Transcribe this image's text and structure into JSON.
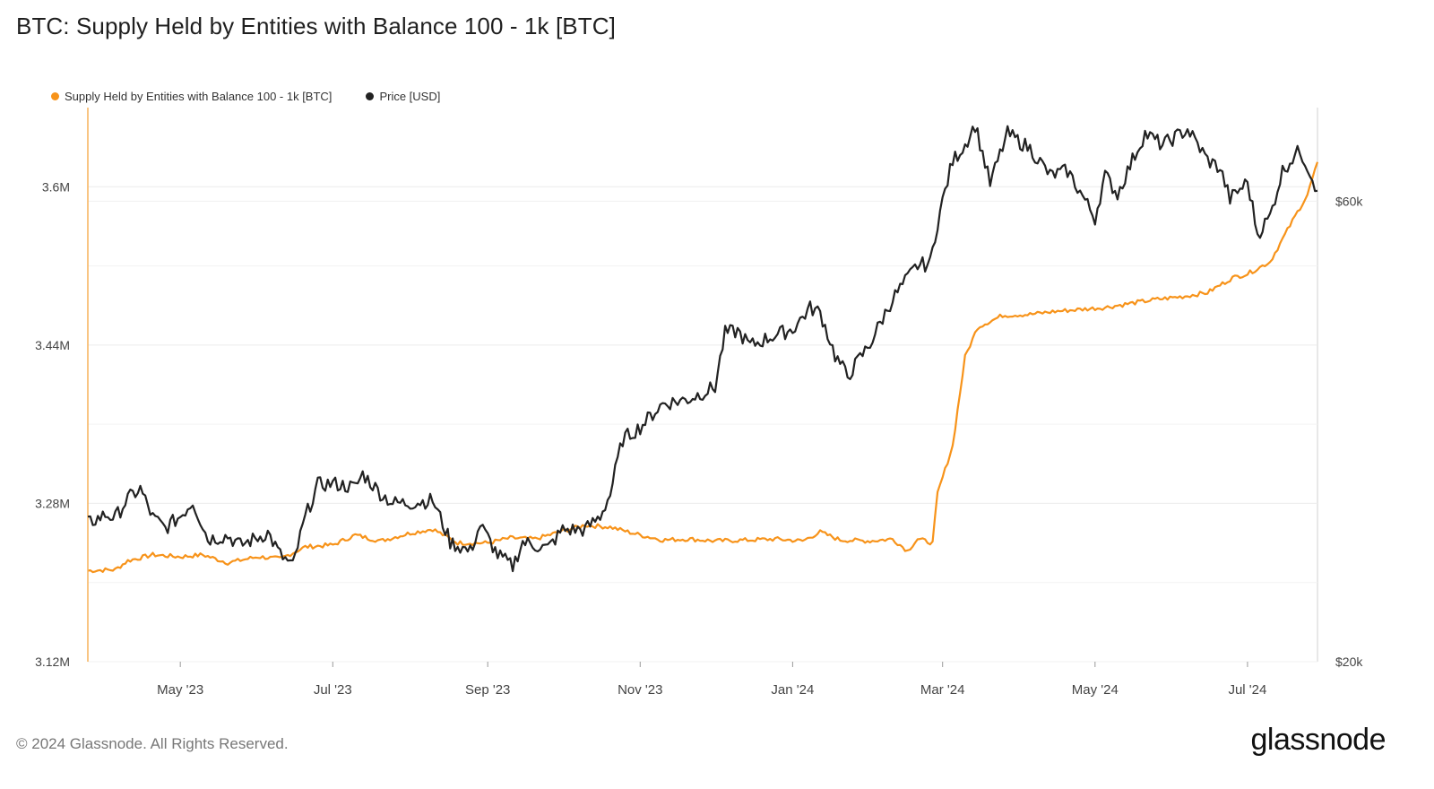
{
  "title": "BTC: Supply Held by Entities with Balance 100 - 1k [BTC]",
  "legend": [
    {
      "label": "Supply Held by Entities with Balance 100 - 1k [BTC]",
      "color": "#f7931a"
    },
    {
      "label": "Price [USD]",
      "color": "#222222"
    }
  ],
  "footer": "© 2024 Glassnode. All Rights Reserved.",
  "brand": "glassnode",
  "chart_data": {
    "type": "line",
    "x_range": [
      "2023-03-25",
      "2024-07-29"
    ],
    "x_ticks": [
      {
        "date": "2023-05-01",
        "label": "May '23"
      },
      {
        "date": "2023-07-01",
        "label": "Jul '23"
      },
      {
        "date": "2023-09-01",
        "label": "Sep '23"
      },
      {
        "date": "2023-11-01",
        "label": "Nov '23"
      },
      {
        "date": "2024-01-01",
        "label": "Jan '24"
      },
      {
        "date": "2024-03-01",
        "label": "Mar '24"
      },
      {
        "date": "2024-05-01",
        "label": "May '24"
      },
      {
        "date": "2024-07-01",
        "label": "Jul '24"
      }
    ],
    "y_left": {
      "range": [
        3120000,
        3680000
      ],
      "ticks": [
        {
          "v": 3120000,
          "label": "3.12M"
        },
        {
          "v": 3280000,
          "label": "3.28M"
        },
        {
          "v": 3440000,
          "label": "3.44M"
        },
        {
          "v": 3600000,
          "label": "3.6M"
        }
      ]
    },
    "y_right": {
      "scale": "log",
      "range": [
        20000,
        75000
      ],
      "ticks": [
        {
          "v": 20000,
          "label": "$20k"
        },
        {
          "v": 60000,
          "label": "$60k"
        }
      ]
    },
    "grid": true,
    "legend_position": "top-left",
    "series": [
      {
        "name": "Supply Held by Entities with Balance 100 - 1k [BTC]",
        "axis": "left",
        "color": "#f7931a",
        "points": [
          [
            "2023-03-25",
            3212000
          ],
          [
            "2023-04-05",
            3213000
          ],
          [
            "2023-04-10",
            3222000
          ],
          [
            "2023-04-20",
            3228000
          ],
          [
            "2023-05-01",
            3226000
          ],
          [
            "2023-05-10",
            3228000
          ],
          [
            "2023-05-20",
            3220000
          ],
          [
            "2023-06-01",
            3226000
          ],
          [
            "2023-06-10",
            3224000
          ],
          [
            "2023-06-20",
            3236000
          ],
          [
            "2023-07-01",
            3238000
          ],
          [
            "2023-07-10",
            3248000
          ],
          [
            "2023-07-20",
            3242000
          ],
          [
            "2023-08-01",
            3250000
          ],
          [
            "2023-08-10",
            3254000
          ],
          [
            "2023-08-20",
            3240000
          ],
          [
            "2023-09-01",
            3240000
          ],
          [
            "2023-09-10",
            3245000
          ],
          [
            "2023-09-20",
            3244000
          ],
          [
            "2023-10-01",
            3252000
          ],
          [
            "2023-10-10",
            3258000
          ],
          [
            "2023-10-20",
            3256000
          ],
          [
            "2023-11-01",
            3248000
          ],
          [
            "2023-11-10",
            3243000
          ],
          [
            "2023-11-20",
            3244000
          ],
          [
            "2023-12-01",
            3242000
          ],
          [
            "2023-12-15",
            3243000
          ],
          [
            "2023-12-25",
            3244000
          ],
          [
            "2024-01-05",
            3242000
          ],
          [
            "2024-01-12",
            3251000
          ],
          [
            "2024-01-20",
            3243000
          ],
          [
            "2024-02-01",
            3242000
          ],
          [
            "2024-02-10",
            3244000
          ],
          [
            "2024-02-16",
            3232000
          ],
          [
            "2024-02-20",
            3244000
          ],
          [
            "2024-02-26",
            3240000
          ],
          [
            "2024-02-28",
            3290000
          ],
          [
            "2024-03-05",
            3338000
          ],
          [
            "2024-03-10",
            3428000
          ],
          [
            "2024-03-15",
            3458000
          ],
          [
            "2024-03-25",
            3470000
          ],
          [
            "2024-04-05",
            3471000
          ],
          [
            "2024-04-15",
            3474000
          ],
          [
            "2024-04-25",
            3476000
          ],
          [
            "2024-05-05",
            3478000
          ],
          [
            "2024-05-15",
            3482000
          ],
          [
            "2024-05-25",
            3486000
          ],
          [
            "2024-06-05",
            3489000
          ],
          [
            "2024-06-15",
            3493000
          ],
          [
            "2024-06-25",
            3508000
          ],
          [
            "2024-07-01",
            3512000
          ],
          [
            "2024-07-10",
            3524000
          ],
          [
            "2024-07-20",
            3570000
          ],
          [
            "2024-07-25",
            3592000
          ],
          [
            "2024-07-29",
            3625000
          ]
        ]
      },
      {
        "name": "Price [USD]",
        "axis": "right",
        "color": "#222222",
        "points": [
          [
            "2023-03-25",
            27800
          ],
          [
            "2023-04-01",
            28400
          ],
          [
            "2023-04-05",
            28200
          ],
          [
            "2023-04-10",
            29500
          ],
          [
            "2023-04-15",
            30200
          ],
          [
            "2023-04-20",
            28200
          ],
          [
            "2023-04-25",
            27500
          ],
          [
            "2023-05-01",
            28300
          ],
          [
            "2023-05-06",
            29300
          ],
          [
            "2023-05-12",
            26800
          ],
          [
            "2023-05-20",
            27000
          ],
          [
            "2023-05-25",
            26400
          ],
          [
            "2023-06-01",
            26900
          ],
          [
            "2023-06-05",
            27200
          ],
          [
            "2023-06-10",
            25800
          ],
          [
            "2023-06-15",
            25100
          ],
          [
            "2023-06-20",
            28200
          ],
          [
            "2023-06-25",
            30500
          ],
          [
            "2023-07-01",
            30600
          ],
          [
            "2023-07-10",
            30300
          ],
          [
            "2023-07-13",
            31300
          ],
          [
            "2023-07-20",
            29900
          ],
          [
            "2023-07-25",
            29200
          ],
          [
            "2023-08-01",
            29200
          ],
          [
            "2023-08-10",
            29400
          ],
          [
            "2023-08-17",
            26600
          ],
          [
            "2023-08-25",
            26000
          ],
          [
            "2023-08-29",
            27700
          ],
          [
            "2023-09-05",
            25800
          ],
          [
            "2023-09-11",
            25100
          ],
          [
            "2023-09-15",
            26600
          ],
          [
            "2023-09-25",
            26200
          ],
          [
            "2023-10-01",
            27400
          ],
          [
            "2023-10-10",
            27400
          ],
          [
            "2023-10-16",
            28300
          ],
          [
            "2023-10-20",
            29800
          ],
          [
            "2023-10-25",
            34000
          ],
          [
            "2023-11-01",
            35000
          ],
          [
            "2023-11-10",
            37000
          ],
          [
            "2023-11-20",
            37400
          ],
          [
            "2023-12-01",
            38500
          ],
          [
            "2023-12-05",
            43800
          ],
          [
            "2023-12-10",
            44000
          ],
          [
            "2023-12-15",
            42500
          ],
          [
            "2023-12-25",
            43600
          ],
          [
            "2024-01-01",
            44200
          ],
          [
            "2024-01-08",
            46500
          ],
          [
            "2024-01-12",
            46000
          ],
          [
            "2024-01-18",
            41500
          ],
          [
            "2024-01-23",
            39500
          ],
          [
            "2024-02-01",
            42700
          ],
          [
            "2024-02-10",
            47500
          ],
          [
            "2024-02-20",
            51500
          ],
          [
            "2024-02-25",
            51700
          ],
          [
            "2024-02-28",
            57000
          ],
          [
            "2024-03-05",
            66000
          ],
          [
            "2024-03-10",
            68700
          ],
          [
            "2024-03-14",
            72000
          ],
          [
            "2024-03-20",
            62500
          ],
          [
            "2024-03-27",
            70500
          ],
          [
            "2024-04-05",
            68000
          ],
          [
            "2024-04-13",
            63800
          ],
          [
            "2024-04-20",
            64500
          ],
          [
            "2024-05-01",
            57600
          ],
          [
            "2024-05-05",
            63800
          ],
          [
            "2024-05-10",
            61000
          ],
          [
            "2024-05-21",
            70500
          ],
          [
            "2024-05-28",
            68600
          ],
          [
            "2024-06-07",
            71200
          ],
          [
            "2024-06-15",
            66200
          ],
          [
            "2024-06-20",
            64900
          ],
          [
            "2024-06-24",
            60300
          ],
          [
            "2024-07-01",
            62800
          ],
          [
            "2024-07-05",
            55500
          ],
          [
            "2024-07-10",
            57800
          ],
          [
            "2024-07-15",
            64500
          ],
          [
            "2024-07-20",
            67000
          ],
          [
            "2024-07-22",
            67600
          ],
          [
            "2024-07-25",
            65300
          ],
          [
            "2024-07-29",
            61500
          ]
        ]
      }
    ]
  }
}
